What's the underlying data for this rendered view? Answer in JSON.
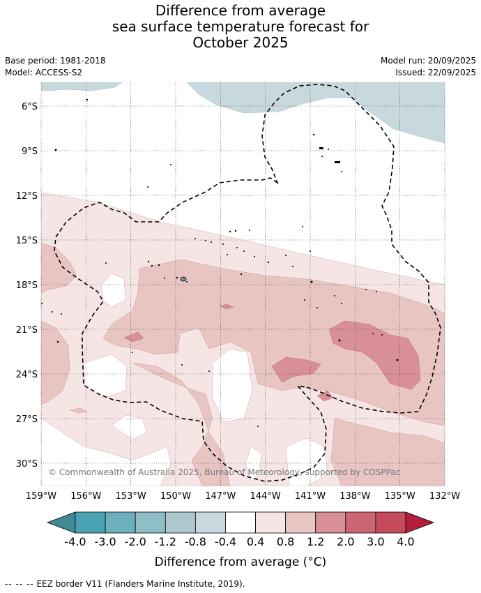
{
  "header": {
    "title_line1": "Difference from average",
    "title_line2": "sea surface temperature forecast for",
    "title_line3": "October 2025",
    "base_period": "Base period: 1981-2018",
    "model": "Model: ACCESS-S2",
    "model_run": "Model run: 20/09/2025",
    "issued": "Issued: 22/09/2025"
  },
  "chart_data": {
    "type": "heatmap",
    "title": "Difference from average sea surface temperature forecast for October 2025",
    "x_ticks": [
      "159°W",
      "156°W",
      "153°W",
      "150°W",
      "147°W",
      "144°W",
      "141°W",
      "138°W",
      "135°W",
      "132°W"
    ],
    "y_ticks": [
      "6°S",
      "9°S",
      "12°S",
      "15°S",
      "18°S",
      "21°S",
      "24°S",
      "27°S",
      "30°S"
    ],
    "lon_range": [
      -159,
      -132
    ],
    "lat_range": [
      -31.5,
      -4.5
    ],
    "grid": true,
    "colorbar": {
      "label": "Difference from average (°C)",
      "ticks": [
        "-4.0",
        "-3.0",
        "-2.0",
        "-1.2",
        "-0.8",
        "-0.4",
        "0.4",
        "0.8",
        "1.2",
        "2.0",
        "3.0",
        "4.0"
      ],
      "colors": [
        "#3f8a93",
        "#4aa3b3",
        "#6cb0be",
        "#8fbec9",
        "#adc9cf",
        "#c7d9dd",
        "#ffffff",
        "#f5e6e5",
        "#e8c5c2",
        "#d88f96",
        "#cc6673",
        "#c44a5c",
        "#b21e3c"
      ]
    },
    "annotation": "© Commonwealth of Australia 2025, Bureau of Meteorology, supported by COSPPac"
  },
  "footer": {
    "dashes": "-- -- --",
    "legend_text": "EEZ border V11 (Flanders Marine Institute, 2019)."
  }
}
